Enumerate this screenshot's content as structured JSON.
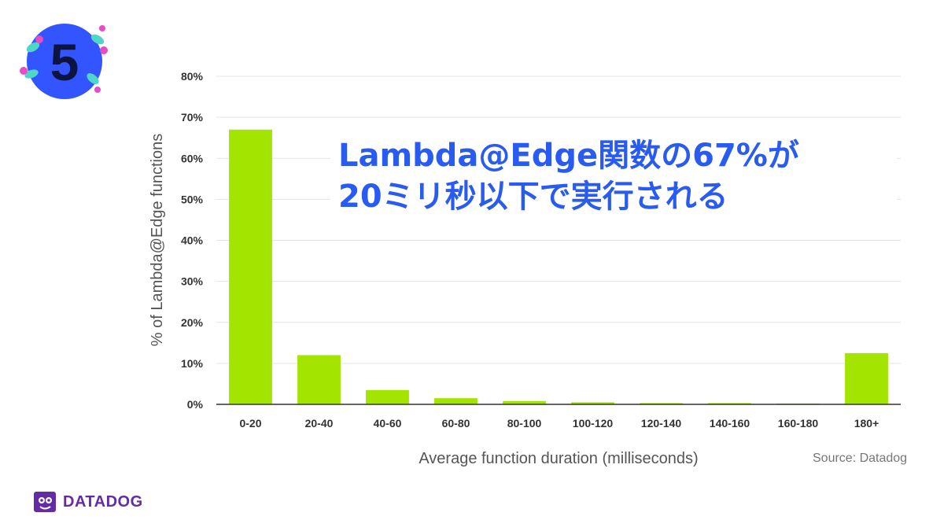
{
  "badge": {
    "number": "5",
    "color": "#3355ff",
    "icon": "confetti-badge-icon"
  },
  "headline": {
    "line1": "Lambda@Edge関数の67%が",
    "line2": "20ミリ秒以下で実行される"
  },
  "source": "Source: Datadog",
  "logo": {
    "text": "DATADOG",
    "icon": "datadog-dog-icon",
    "color": "#632ca6"
  },
  "chart_data": {
    "type": "bar",
    "categories": [
      "0-20",
      "20-40",
      "40-60",
      "60-80",
      "80-100",
      "100-120",
      "120-140",
      "140-160",
      "160-180",
      "180+"
    ],
    "values": [
      67,
      12,
      3.5,
      1.5,
      0.8,
      0.5,
      0.3,
      0.3,
      0.2,
      12.5
    ],
    "xlabel": "Average function duration (milliseconds)",
    "ylabel": "% of Lambda@Edge functions",
    "ylim": [
      0,
      80
    ],
    "yticks": [
      "0%",
      "10%",
      "20%",
      "30%",
      "40%",
      "50%",
      "60%",
      "70%",
      "80%"
    ],
    "bar_color": "#a3e400",
    "grid": true
  }
}
